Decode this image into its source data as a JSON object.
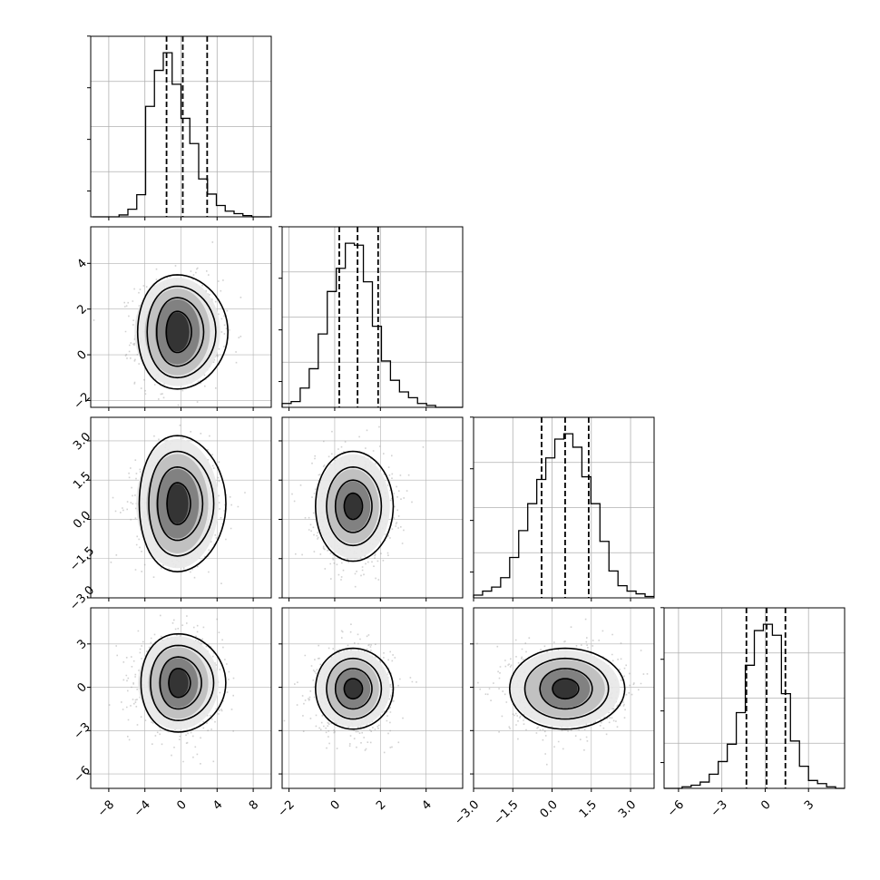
{
  "chart_data": {
    "type": "corner",
    "parameters": 4,
    "grid": true,
    "colors": {
      "hist": "#000000",
      "quantile": "#000000",
      "scatter": "#999999",
      "grid": "#b0b0b0",
      "frame": "#000000"
    },
    "quantile_style": "dashed",
    "params": [
      {
        "ticks": [
          -8,
          -4,
          0,
          4,
          8
        ],
        "tick_labels": [
          "−8",
          "−4",
          "0",
          "4",
          "8"
        ],
        "diag_range": [
          -10,
          10
        ],
        "quantiles": [
          -1.6,
          0.2,
          2.9
        ],
        "histogram": {
          "edges_start": -9.8,
          "bin_width": 0.98,
          "counts": [
            0,
            0,
            0,
            3,
            12,
            35,
            175,
            232,
            260,
            210,
            156,
            116,
            60,
            36,
            18,
            9,
            5,
            2,
            0,
            0
          ]
        }
      },
      {
        "ticks": [
          -2,
          0,
          2,
          4
        ],
        "tick_labels": [
          "−2",
          "0",
          "2",
          "4"
        ],
        "row_ticks": [
          -2,
          0,
          2,
          4
        ],
        "row_tick_labels": [
          "−2",
          "0",
          "2",
          "4"
        ],
        "range": [
          -2.3,
          5.6
        ],
        "quantiles": [
          0.2,
          1.0,
          1.9
        ],
        "histogram": {
          "edges_start": -2.3,
          "bin_width": 0.395,
          "counts": [
            2,
            3,
            10,
            20,
            38,
            60,
            72,
            85,
            84,
            65,
            42,
            24,
            14,
            8,
            5,
            2,
            1,
            0,
            0,
            0
          ]
        }
      },
      {
        "ticks": [
          -3.0,
          -1.5,
          0.0,
          1.5,
          3.0
        ],
        "tick_labels": [
          "−3.0",
          "−1.5",
          "0.0",
          "1.5",
          "3.0"
        ],
        "row_ticks": [
          -3.0,
          -1.5,
          0.0,
          1.5,
          3.0
        ],
        "row_tick_labels": [
          "−3.0",
          "−1.5",
          "0.0",
          "1.5",
          "3.0"
        ],
        "range": [
          -3.0,
          3.9
        ],
        "quantiles": [
          -0.4,
          0.5,
          1.4
        ],
        "histogram": {
          "edges_start": -3.0,
          "bin_width": 0.345,
          "counts": [
            2,
            5,
            8,
            15,
            30,
            50,
            70,
            88,
            104,
            118,
            122,
            112,
            90,
            70,
            42,
            20,
            9,
            5,
            3,
            1
          ]
        }
      },
      {
        "ticks": [
          -6,
          -3,
          0,
          3
        ],
        "tick_labels": [
          "−6",
          "−3",
          "0",
          "3"
        ],
        "row_ticks": [
          -6,
          -3,
          0,
          3
        ],
        "row_tick_labels": [
          "−6",
          "−3",
          "0",
          "3"
        ],
        "range": [
          -7.0,
          5.5
        ],
        "quantiles": [
          -1.3,
          0.1,
          1.4
        ],
        "histogram": {
          "edges_start": -7.0,
          "bin_width": 0.625,
          "counts": [
            0,
            0,
            1,
            2,
            4,
            9,
            17,
            28,
            48,
            78,
            100,
            104,
            97,
            60,
            30,
            14,
            5,
            3,
            1,
            0
          ]
        }
      }
    ],
    "joint": [
      {
        "row": 1,
        "col": 0,
        "center": [
          -0.4,
          1.0
        ],
        "spread": [
          2.2,
          1.1
        ],
        "levels": [
          [
            1.4,
            0.9
          ],
          [
            2.6,
            1.5
          ],
          [
            3.8,
            2.0
          ],
          [
            5.0,
            2.5
          ]
        ]
      },
      {
        "row": 2,
        "col": 0,
        "center": [
          -0.4,
          0.6
        ],
        "spread": [
          2.2,
          1.0
        ],
        "levels": [
          [
            1.3,
            0.8
          ],
          [
            2.5,
            1.4
          ],
          [
            3.6,
            2.0
          ],
          [
            4.8,
            2.6
          ]
        ]
      },
      {
        "row": 2,
        "col": 1,
        "center": [
          0.8,
          0.5
        ],
        "spread": [
          0.8,
          1.0
        ],
        "levels": [
          [
            0.4,
            0.5
          ],
          [
            0.8,
            1.0
          ],
          [
            1.2,
            1.5
          ],
          [
            1.7,
            2.1
          ]
        ]
      },
      {
        "row": 3,
        "col": 0,
        "center": [
          -0.3,
          0.3
        ],
        "spread": [
          2.2,
          1.5
        ],
        "levels": [
          [
            1.2,
            1.0
          ],
          [
            2.3,
            1.8
          ],
          [
            3.5,
            2.6
          ],
          [
            4.7,
            3.4
          ]
        ]
      },
      {
        "row": 3,
        "col": 1,
        "center": [
          0.8,
          -0.1
        ],
        "spread": [
          0.8,
          1.4
        ],
        "levels": [
          [
            0.4,
            0.7
          ],
          [
            0.8,
            1.4
          ],
          [
            1.2,
            2.1
          ],
          [
            1.7,
            2.8
          ]
        ]
      },
      {
        "row": 3,
        "col": 2,
        "center": [
          0.5,
          -0.1
        ],
        "spread": [
          1.0,
          1.4
        ],
        "levels": [
          [
            0.5,
            0.7
          ],
          [
            1.0,
            1.4
          ],
          [
            1.6,
            2.1
          ],
          [
            2.2,
            2.8
          ]
        ]
      }
    ]
  }
}
